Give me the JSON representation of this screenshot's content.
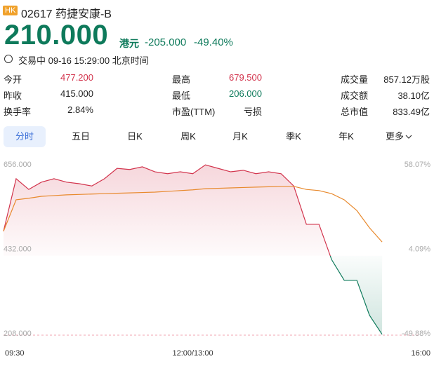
{
  "header": {
    "market": "HK",
    "code": "02617",
    "name": "药捷安康-B",
    "price": "210.000",
    "currency": "港元",
    "change": "-205.000",
    "change_pct": "-49.40%",
    "status": "交易中 09-16 15:29:00 北京时间"
  },
  "stats": {
    "rows": [
      [
        {
          "label": "今开",
          "value": "477.200"
        },
        {
          "label": "最高",
          "value": "679.500"
        },
        {
          "label": "成交量",
          "value": "857.12万股"
        }
      ],
      [
        {
          "label": "昨收",
          "value": "415.000"
        },
        {
          "label": "最低",
          "value": "206.000"
        },
        {
          "label": "成交额",
          "value": "38.10亿"
        }
      ],
      [
        {
          "label": "换手率",
          "value": "2.84%"
        },
        {
          "label": "市盈(TTM)",
          "value": "亏损"
        },
        {
          "label": "总市值",
          "value": "833.49亿"
        }
      ]
    ]
  },
  "tabs": [
    "分时",
    "五日",
    "日K",
    "周K",
    "月K",
    "季K",
    "年K",
    "更多"
  ],
  "chart_data": {
    "type": "line",
    "categories": [
      "09:30",
      null,
      null,
      null,
      null,
      null,
      null,
      null,
      null,
      null,
      null,
      null,
      null,
      null,
      null,
      "12:00/13:00",
      null,
      null,
      null,
      null,
      null,
      null,
      null,
      null,
      null,
      null,
      null,
      null,
      null,
      null,
      null,
      null,
      null,
      "16:00"
    ],
    "series": [
      {
        "values": [
          479,
          616,
          588,
          607,
          616,
          607,
          603,
          597,
          616,
          643,
          640,
          647,
          634,
          629,
          634,
          629,
          652,
          643,
          634,
          638,
          629,
          634,
          629,
          597,
          497,
          497,
          405,
          351,
          351,
          260,
          210,
          null,
          null,
          null
        ]
      },
      {
        "values": [
          479,
          561,
          565,
          570,
          572,
          574,
          575,
          576,
          577,
          578,
          579,
          580,
          581,
          583,
          585,
          587,
          590,
          591,
          592,
          593,
          594,
          595,
          596,
          596,
          588,
          585,
          577,
          561,
          533,
          488,
          451,
          null,
          null,
          null
        ],
        "color": "#e8892c"
      }
    ],
    "reference": 415,
    "color_up": "#d2334c",
    "color_down": "#0e7a5b",
    "ylim": [
      208,
      656
    ],
    "yticks": [
      {
        "value": 656,
        "label": "656.000"
      },
      {
        "value": 432,
        "label": "432.000"
      },
      {
        "value": 208,
        "label": "208.000"
      }
    ],
    "y2lim": [
      -49.88,
      58.07
    ],
    "y2ticks": [
      {
        "value": 58.07,
        "label": "58.07%"
      },
      {
        "value": 4.09,
        "label": "4.09%"
      },
      {
        "value": -49.88,
        "label": "-49.88%"
      }
    ]
  }
}
